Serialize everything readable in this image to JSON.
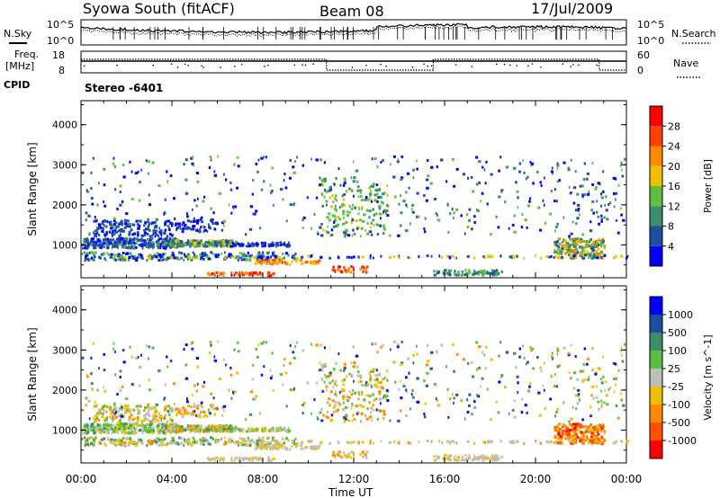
{
  "header": {
    "station": "Syowa South (fitACF)",
    "beam": "Beam 08",
    "date": "17/Jul/2009"
  },
  "panels": {
    "nsky_label": "N.Sky",
    "nsearch_label": "N.Search",
    "freq_label_1": "Freq.",
    "freq_label_2": "[MHz]",
    "nave_label": "Nave",
    "cpid_label": "CPID",
    "cpid_value": "Stereo -6401",
    "nsky_ticks": [
      "10^5",
      "10^0"
    ],
    "nsearch_ticks": [
      "10^5",
      "10^0"
    ],
    "freq_ticks": [
      "18",
      "8"
    ],
    "nave_ticks": [
      "60",
      "0"
    ]
  },
  "colors": {
    "power": [
      "#0000ff",
      "#1f4fa0",
      "#3a8f6a",
      "#5cc040",
      "#f0c000",
      "#ff8a00",
      "#ff4000",
      "#ff0000"
    ],
    "velocity": [
      "#ff0000",
      "#ff5000",
      "#ff8a00",
      "#f0c000",
      "#bebebe",
      "#5cc040",
      "#3a8f6a",
      "#1f4fa0",
      "#0000ff"
    ]
  },
  "chart_data": [
    {
      "type": "heatmap",
      "title": "Power",
      "xlabel": "",
      "ylabel": "Slant Range [km]",
      "x_ticks": [
        "00:00",
        "04:00",
        "08:00",
        "12:00",
        "16:00",
        "20:00",
        "00:00"
      ],
      "y_ticks": [
        "1000",
        "2000",
        "3000",
        "4000"
      ],
      "ylim": [
        180,
        4600
      ],
      "colorbar_label": "Power [dB]",
      "colorbar_ticks": [
        "4",
        "8",
        "12",
        "16",
        "20",
        "24",
        "28"
      ],
      "colorbar_range": [
        0,
        32
      ]
    },
    {
      "type": "heatmap",
      "title": "Velocity",
      "xlabel": "Time UT",
      "ylabel": "Slant Range [km]",
      "x_ticks": [
        "00:00",
        "04:00",
        "08:00",
        "12:00",
        "16:00",
        "20:00",
        "00:00"
      ],
      "y_ticks": [
        "1000",
        "2000",
        "3000",
        "4000"
      ],
      "ylim": [
        180,
        4600
      ],
      "colorbar_label": "Velocity [m s^-1]",
      "colorbar_ticks": [
        "1000",
        "500",
        "100",
        "25",
        "-25",
        "-100",
        "-500",
        "-1000"
      ]
    }
  ]
}
